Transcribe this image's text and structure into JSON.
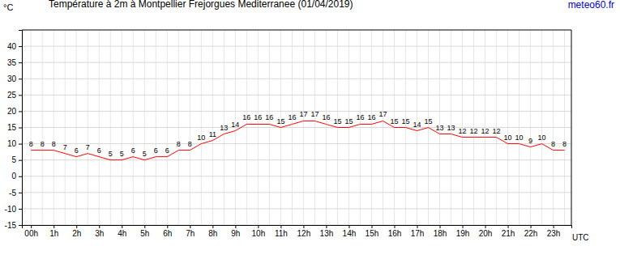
{
  "chart_data": {
    "type": "line",
    "title": "Température à 2m à Montpellier Frejorgues Mediterranee (01/04/2019)",
    "source": "meteo60.fr",
    "y_label": "°C",
    "x_label": "UTC",
    "x": [
      0,
      0.5,
      1,
      1.5,
      2,
      2.5,
      3,
      3.5,
      4,
      4.5,
      5,
      5.5,
      6,
      6.5,
      7,
      7.5,
      8,
      8.5,
      9,
      9.5,
      10,
      10.5,
      11,
      11.5,
      12,
      12.5,
      13,
      13.5,
      14,
      14.5,
      15,
      15.5,
      16,
      16.5,
      17,
      17.5,
      18,
      18.5,
      19,
      19.5,
      20,
      20.5,
      21,
      21.5,
      22,
      22.5,
      23,
      23.5
    ],
    "values": [
      8,
      8,
      8,
      7,
      6,
      7,
      6,
      5,
      5,
      6,
      5,
      6,
      6,
      8,
      8,
      10,
      11,
      13,
      14,
      16,
      16,
      16,
      15,
      16,
      17,
      17,
      16,
      15,
      15,
      16,
      16,
      17,
      15,
      15,
      14,
      15,
      13,
      13,
      12,
      12,
      12,
      12,
      10,
      10,
      9,
      10,
      8,
      8
    ],
    "color": "#ff0000",
    "data_labels": true,
    "grid": true,
    "xlim": [
      -0.4,
      23.8
    ],
    "xticks": [
      {
        "value": 0,
        "label": "00h"
      },
      {
        "value": 1,
        "label": "1h"
      },
      {
        "value": 2,
        "label": "2h"
      },
      {
        "value": 3,
        "label": "3h"
      },
      {
        "value": 4,
        "label": "4h"
      },
      {
        "value": 5,
        "label": "5h"
      },
      {
        "value": 6,
        "label": "6h"
      },
      {
        "value": 7,
        "label": "7h"
      },
      {
        "value": 8,
        "label": "8h"
      },
      {
        "value": 9,
        "label": "9h"
      },
      {
        "value": 10,
        "label": "10h"
      },
      {
        "value": 11,
        "label": "11h"
      },
      {
        "value": 12,
        "label": "12h"
      },
      {
        "value": 13,
        "label": "13h"
      },
      {
        "value": 14,
        "label": "14h"
      },
      {
        "value": 15,
        "label": "15h"
      },
      {
        "value": 16,
        "label": "16h"
      },
      {
        "value": 17,
        "label": "17h"
      },
      {
        "value": 18,
        "label": "18h"
      },
      {
        "value": 19,
        "label": "19h"
      },
      {
        "value": 20,
        "label": "20h"
      },
      {
        "value": 21,
        "label": "21h"
      },
      {
        "value": 22,
        "label": "22h"
      },
      {
        "value": 23,
        "label": "23h"
      }
    ],
    "ylim": [
      -15,
      45
    ],
    "yticks": [
      -15,
      -10,
      -5,
      0,
      5,
      10,
      15,
      20,
      25,
      30,
      35,
      40
    ]
  }
}
